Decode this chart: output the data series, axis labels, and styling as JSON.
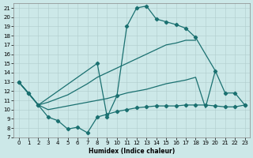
{
  "xlabel": "Humidex (Indice chaleur)",
  "bg_color": "#cce8e8",
  "grid_color": "#b0cccc",
  "line_color": "#1a7070",
  "xlim": [
    -0.5,
    23.5
  ],
  "ylim": [
    7,
    21.5
  ],
  "xticks": [
    0,
    1,
    2,
    3,
    4,
    5,
    6,
    7,
    8,
    9,
    10,
    11,
    12,
    13,
    14,
    15,
    16,
    17,
    18,
    19,
    20,
    21,
    22,
    23
  ],
  "yticks": [
    7,
    8,
    9,
    10,
    11,
    12,
    13,
    14,
    15,
    16,
    17,
    18,
    19,
    20,
    21
  ],
  "curve_markers_x": [
    0,
    1,
    2,
    8,
    9,
    10,
    11,
    12,
    13,
    14,
    15,
    16,
    17,
    18,
    20,
    21,
    22,
    23
  ],
  "curve_markers_y": [
    13,
    11.8,
    10.5,
    15.0,
    9.2,
    11.5,
    19.0,
    21.0,
    21.2,
    19.8,
    19.5,
    19.2,
    18.8,
    17.8,
    14.2,
    11.8,
    11.8,
    10.5
  ],
  "curve_smooth1_x": [
    0,
    2,
    3,
    4,
    5,
    6,
    7,
    8,
    9,
    10,
    11,
    12,
    13,
    14,
    15,
    16,
    17,
    18
  ],
  "curve_smooth1_y": [
    13,
    10.5,
    10.8,
    11.2,
    11.6,
    12.2,
    12.8,
    13.5,
    14.0,
    14.5,
    15.0,
    15.5,
    16.0,
    16.5,
    17.0,
    17.2,
    17.5,
    17.5
  ],
  "curve_smooth2_x": [
    0,
    2,
    3,
    4,
    5,
    6,
    7,
    8,
    9,
    10,
    11,
    12,
    13,
    14,
    15,
    16,
    17,
    18,
    19,
    20
  ],
  "curve_smooth2_y": [
    13,
    10.5,
    10.0,
    10.2,
    10.4,
    10.6,
    10.8,
    11.0,
    11.2,
    11.5,
    11.8,
    12.0,
    12.2,
    12.5,
    12.8,
    13.0,
    13.2,
    13.5,
    10.2,
    14.2
  ],
  "curve_jagged_x": [
    0,
    1,
    2,
    3,
    4,
    5,
    6,
    7,
    8,
    9,
    10,
    11,
    12,
    13,
    14,
    15,
    16,
    17,
    18,
    19,
    20,
    21,
    22,
    23
  ],
  "curve_jagged_y": [
    13,
    11.8,
    10.5,
    9.2,
    8.8,
    7.9,
    8.1,
    7.5,
    9.2,
    9.5,
    9.8,
    10.0,
    10.2,
    10.3,
    10.4,
    10.4,
    10.4,
    10.5,
    10.5,
    10.5,
    10.4,
    10.3,
    10.3,
    10.5
  ]
}
